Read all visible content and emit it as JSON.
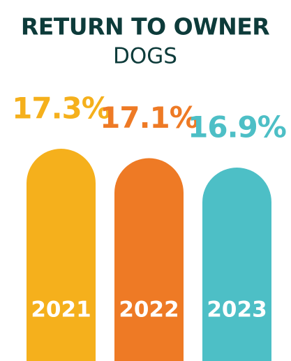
{
  "chart_data": {
    "type": "bar",
    "title": "RETURN TO OWNER",
    "subtitle": "DOGS",
    "categories": [
      "2021",
      "2022",
      "2023"
    ],
    "values": [
      17.3,
      17.1,
      16.9
    ],
    "value_labels": [
      "17.3%",
      "17.1%",
      "16.9%"
    ],
    "colors": [
      "#f5b01c",
      "#ee7a25",
      "#4dbfc6"
    ],
    "ylim": [
      12.8,
      17.3
    ]
  }
}
